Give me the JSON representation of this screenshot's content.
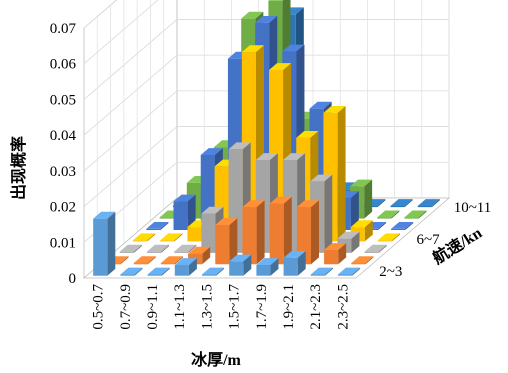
{
  "chart_data": {
    "type": "bar",
    "subtype": "3d-grouped",
    "title": "",
    "xlabel": "冰厚/m",
    "ylabel": "出现概率",
    "zlabel": "航速/kn",
    "categories": [
      "0.5~0.7",
      "0.7~0.9",
      "0.9~1.1",
      "1.1~1.3",
      "1.3~1.5",
      "1.5~1.7",
      "1.7~1.9",
      "1.9~2.1",
      "2.1~2.3",
      "2.3~2.5"
    ],
    "depth_labels": [
      "2~3",
      "",
      "6~7",
      "",
      "10~11"
    ],
    "ylim": [
      0,
      0.07
    ],
    "yticks": [
      "0",
      "0.01",
      "0.02",
      "0.03",
      "0.04",
      "0.05",
      "0.06",
      "0.07"
    ],
    "grid": true,
    "series": [
      {
        "color": "#5B9BD5",
        "values": [
          0.016,
          0.0,
          0.0,
          0.003,
          0.0,
          0.004,
          0.003,
          0.005,
          0.0,
          0.0
        ]
      },
      {
        "color": "#ED7D31",
        "values": [
          0.0,
          0.0,
          0.0,
          0.003,
          0.011,
          0.016,
          0.017,
          0.016,
          0.004,
          0.0
        ]
      },
      {
        "color": "#A5A5A5",
        "values": [
          0.0,
          0.0,
          0.0,
          0.011,
          0.029,
          0.026,
          0.026,
          0.02,
          0.004,
          0.0
        ]
      },
      {
        "color": "#FFC000",
        "values": [
          0.0,
          0.0,
          0.004,
          0.021,
          0.053,
          0.048,
          0.029,
          0.036,
          0.004,
          0.0
        ]
      },
      {
        "color": "#4472C4",
        "values": [
          0.0,
          0.008,
          0.021,
          0.048,
          0.058,
          0.05,
          0.034,
          0.009,
          0.0,
          0.0
        ]
      },
      {
        "color": "#70AD47",
        "values": [
          0.0,
          0.01,
          0.02,
          0.056,
          0.061,
          0.028,
          0.012,
          0.009,
          0.0,
          0.0
        ]
      },
      {
        "color": "#2E75B6",
        "values": [
          0.0,
          0.005,
          0.013,
          0.047,
          0.054,
          0.024,
          0.005,
          0.0,
          0.0,
          0.0
        ]
      }
    ]
  }
}
